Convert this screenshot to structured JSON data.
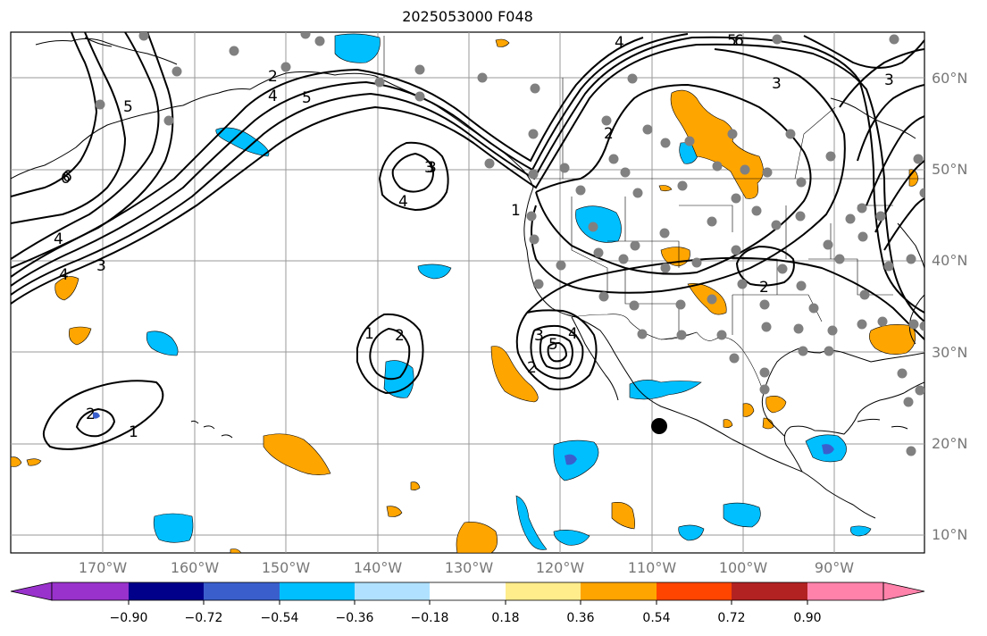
{
  "title": "2025053000 F048",
  "lat_labels": [
    "60°N",
    "50°N",
    "40°N",
    "30°N",
    "20°N",
    "10°N"
  ],
  "lon_labels": [
    "170°W",
    "160°W",
    "150°W",
    "140°W",
    "130°W",
    "120°W",
    "110°W",
    "100°W",
    "90°W"
  ],
  "colorbar": {
    "tick_labels": [
      "−0.90",
      "−0.72",
      "−0.54",
      "−0.36",
      "−0.18",
      "0.18",
      "0.36",
      "0.54",
      "0.72",
      "0.90"
    ],
    "colors": [
      "#9932cc",
      "#00008b",
      "#3a5fcd",
      "#00bfff",
      "#b0e2ff",
      "#ffffff",
      "#ffec8b",
      "#ffa500",
      "#ff4500",
      "#b22222",
      "#ff82ab"
    ]
  },
  "contour_labels": [
    "6",
    "5",
    "4",
    "3",
    "2",
    "1",
    "2",
    "4",
    "3",
    "3",
    "4",
    "5",
    "4",
    "3",
    "2",
    "4",
    "5",
    "6",
    "1",
    "2",
    "1",
    "2",
    "3",
    "4",
    "5",
    "3",
    "6",
    "2"
  ],
  "fill_colors": {
    "negative_light": "#00bfff",
    "negative_strong": "#3a5fcd",
    "positive": "#ffa500"
  }
}
